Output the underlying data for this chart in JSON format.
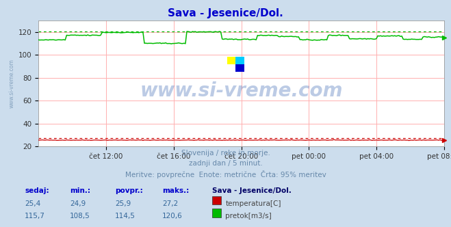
{
  "title": "Sava - Jesenice/Dol.",
  "title_color": "#0000cc",
  "bg_color": "#ccdded",
  "plot_bg_color": "#ffffff",
  "grid_color": "#ffb0b0",
  "subtitle_lines": [
    "Slovenija / reke in morje.",
    "zadnji dan / 5 minut.",
    "Meritve: povprečne  Enote: metrične  Črta: 95% meritev"
  ],
  "subtitle_color": "#6688aa",
  "watermark": "www.si-vreme.com",
  "watermark_color": "#2255aa",
  "watermark_alpha": 0.3,
  "xlabel_ticks": [
    "čet 12:00",
    "čet 16:00",
    "čet 20:00",
    "pet 00:00",
    "pet 04:00",
    "pet 08:00"
  ],
  "xlabel_color": "#666666",
  "ylim": [
    20,
    130
  ],
  "yticks": [
    20,
    40,
    60,
    80,
    100,
    120
  ],
  "yticklabels": [
    "20",
    "40",
    "60",
    "80",
    "100",
    "120"
  ],
  "n_points": 288,
  "temp_min": 24.9,
  "temp_max": 27.2,
  "temp_avg": 25.9,
  "temp_current": 25.4,
  "temp_color": "#cc0000",
  "temp_95pct": 27.0,
  "flow_min": 108.5,
  "flow_max": 120.6,
  "flow_avg": 114.5,
  "flow_current": 115.7,
  "flow_color": "#00bb00",
  "flow_95pct": 120.3,
  "legend_title": "Sava - Jesenice/Dol.",
  "legend_title_color": "#000066",
  "legend_label_color": "#444444",
  "table_headers": [
    "sedaj:",
    "min.:",
    "povpr.:",
    "maks.:"
  ],
  "table_header_color": "#0000cc",
  "table_values_temp": [
    "25,4",
    "24,9",
    "25,9",
    "27,2"
  ],
  "table_values_flow": [
    "115,7",
    "108,5",
    "114,5",
    "120,6"
  ],
  "table_value_color": "#336699",
  "ylabel_text": "www.si-vreme.com",
  "ylabel_color": "#6688aa",
  "ylabel_alpha": 0.4
}
